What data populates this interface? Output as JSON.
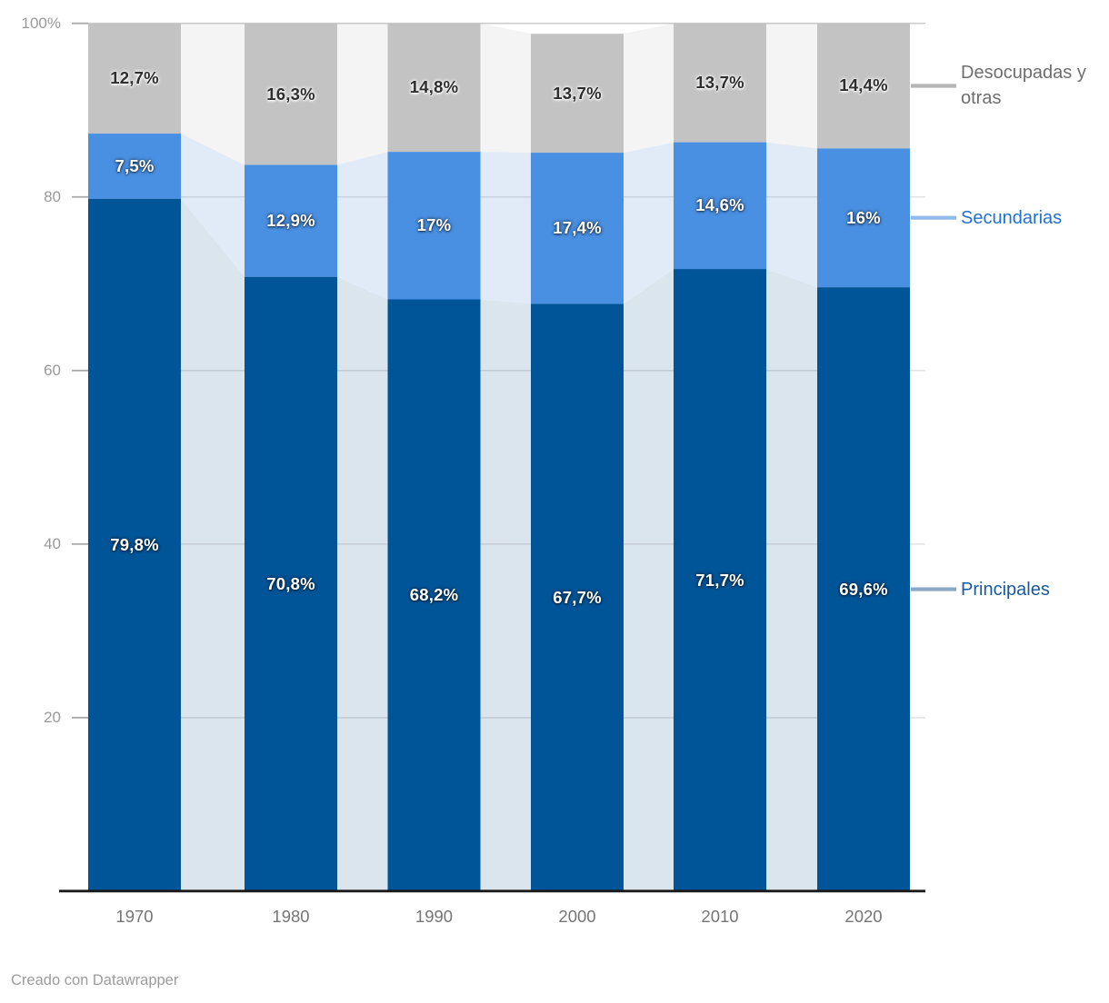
{
  "chart_data": {
    "type": "bar",
    "variant": "stacked-column-with-area-connectors",
    "categories": [
      "1970",
      "1980",
      "1990",
      "2000",
      "2010",
      "2020"
    ],
    "series": [
      {
        "name": "Principales",
        "values": [
          79.8,
          70.8,
          68.2,
          67.7,
          71.7,
          69.6
        ],
        "labels": [
          "79,8%",
          "70,8%",
          "68,2%",
          "67,7%",
          "71,7%",
          "69,6%"
        ],
        "color": "#005599",
        "connector_color": "#DBE5EE",
        "label_style": "light",
        "legend_text_color": "#17599E",
        "leader_color": "#8AA7C6"
      },
      {
        "name": "Secundarias",
        "values": [
          7.5,
          12.9,
          17,
          17.4,
          14.6,
          16
        ],
        "labels": [
          "7,5%",
          "12,9%",
          "17%",
          "17,4%",
          "14,6%",
          "16%"
        ],
        "color": "#4A90E2",
        "connector_color": "#E1EBF8",
        "label_style": "light",
        "legend_text_color": "#1E71D6",
        "leader_color": "#8FBAE9"
      },
      {
        "name": "Desocupadas y otras",
        "values": [
          12.7,
          16.3,
          14.8,
          13.7,
          13.7,
          14.4
        ],
        "labels": [
          "12,7%",
          "16,3%",
          "14,8%",
          "13,7%",
          "13,7%",
          "14,4%"
        ],
        "color": "#C3C3C3",
        "connector_color": "#F4F4F4",
        "label_style": "dark",
        "legend_text_color": "#6E6E6E",
        "leader_color": "#B5B5B5"
      }
    ],
    "yticks": [
      {
        "value": 20,
        "label": "20"
      },
      {
        "value": 40,
        "label": "40"
      },
      {
        "value": 60,
        "label": "60"
      },
      {
        "value": 80,
        "label": "80"
      },
      {
        "value": 100,
        "label": "100%"
      }
    ],
    "ylim": [
      0,
      100
    ],
    "grid": true,
    "legend_position": "right"
  },
  "footer": {
    "credit": "Creado con Datawrapper"
  }
}
